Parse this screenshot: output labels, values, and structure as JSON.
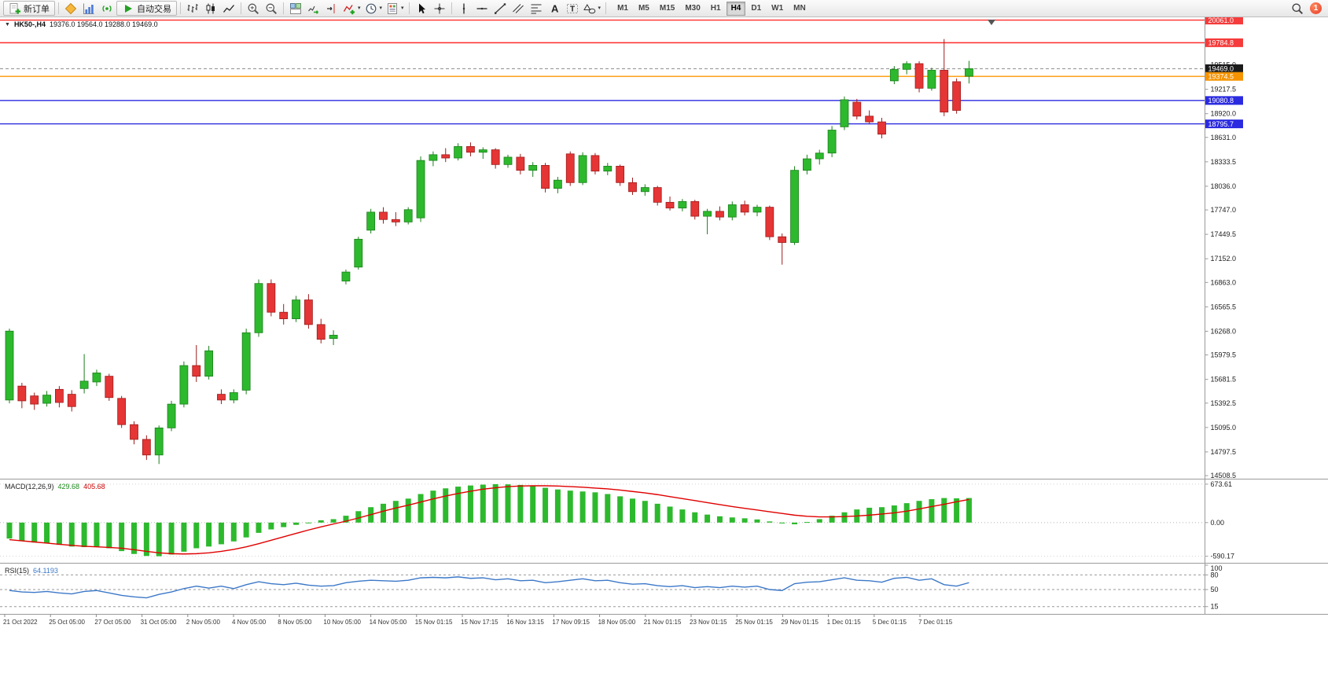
{
  "toolbar": {
    "new_order_label": "新订单",
    "autotrading_label": "自动交易",
    "dropdown_caret": "▾",
    "timeframes": [
      "M1",
      "M5",
      "M15",
      "M30",
      "H1",
      "H4",
      "D1",
      "W1",
      "MN"
    ],
    "active_timeframe": "H4",
    "notification_count": "1"
  },
  "chart_header": {
    "collapse_caret": "▼",
    "symbol": "HK50-,H4",
    "ohlc": "19376.0 19564.0 19288.0 19469.0"
  },
  "indicators": {
    "macd_label": "MACD(12,26,9)",
    "macd_value_main": "429.68",
    "macd_value_signal": "405.68",
    "rsi_label": "RSI(15)",
    "rsi_value": "64.1193"
  },
  "price_axis": {
    "ticks": [
      {
        "label": "19515.0",
        "price": 19515.0
      },
      {
        "label": "19217.5",
        "price": 19217.5
      },
      {
        "label": "18920.0",
        "price": 18920.0
      },
      {
        "label": "18631.0",
        "price": 18631.0
      },
      {
        "label": "18333.5",
        "price": 18333.5
      },
      {
        "label": "18036.0",
        "price": 18036.0
      },
      {
        "label": "17747.0",
        "price": 17747.0
      },
      {
        "label": "17449.5",
        "price": 17449.5
      },
      {
        "label": "17152.0",
        "price": 17152.0
      },
      {
        "label": "16863.0",
        "price": 16863.0
      },
      {
        "label": "16565.5",
        "price": 16565.5
      },
      {
        "label": "16268.0",
        "price": 16268.0
      },
      {
        "label": "15979.5",
        "price": 15979.5
      },
      {
        "label": "15681.5",
        "price": 15681.5
      },
      {
        "label": "15392.5",
        "price": 15392.5
      },
      {
        "label": "15095.0",
        "price": 15095.0
      },
      {
        "label": "14797.5",
        "price": 14797.5
      },
      {
        "label": "14508.5",
        "price": 14508.5
      }
    ]
  },
  "time_axis": {
    "labels": [
      "21 Oct 2022",
      "25 Oct 05:00",
      "27 Oct 05:00",
      "31 Oct 05:00",
      "2 Nov 05:00",
      "4 Nov 05:00",
      "8 Nov 05:00",
      "10 Nov 05:00",
      "14 Nov 05:00",
      "15 Nov 01:15",
      "15 Nov 17:15",
      "16 Nov 13:15",
      "17 Nov 09:15",
      "18 Nov 05:00",
      "21 Nov 01:15",
      "23 Nov 01:15",
      "25 Nov 01:15",
      "29 Nov 01:15",
      "1 Dec 01:15",
      "5 Dec 01:15",
      "7 Dec 01:15"
    ]
  },
  "chart_data": [
    {
      "type": "candlestick",
      "title": "HK50-,H4",
      "symbol": "HK50-",
      "timeframe": "H4",
      "current_bar": {
        "open": 19376.0,
        "high": 19564.0,
        "low": 19288.0,
        "close": 19469.0
      },
      "y_range": [
        14490,
        20095
      ],
      "up_color": "#2DB92D",
      "down_color": "#E53535",
      "horizontal_lines": [
        {
          "price": 20061.0,
          "label": "20061.0",
          "color": "#FF2A2A",
          "badge": "#F53B3B",
          "style": "solid"
        },
        {
          "price": 19784.8,
          "label": "19784.8",
          "color": "#FF2A2A",
          "badge": "#F53B3B",
          "style": "solid"
        },
        {
          "price": 19469.0,
          "label": "19469.0",
          "color": "#8A8A8A",
          "badge": "#1B1B1B",
          "style": "dashed"
        },
        {
          "price": 19374.5,
          "label": "19374.5",
          "color": "#FF9800",
          "badge": "#F59300",
          "style": "solid"
        },
        {
          "price": 19080.8,
          "label": "19080.8",
          "color": "#2A2AE0",
          "badge": "#2A2AE0",
          "style": "solid"
        },
        {
          "price": 18795.7,
          "label": "18795.7",
          "color": "#2A2AE0",
          "badge": "#2A2AE0",
          "style": "solid"
        }
      ],
      "candles": [
        [
          15430,
          16300,
          15390,
          16270
        ],
        [
          15600,
          15640,
          15330,
          15420
        ],
        [
          15480,
          15520,
          15310,
          15380
        ],
        [
          15390,
          15540,
          15350,
          15490
        ],
        [
          15560,
          15600,
          15340,
          15400
        ],
        [
          15500,
          15550,
          15290,
          15350
        ],
        [
          15570,
          15990,
          15510,
          15660
        ],
        [
          15650,
          15800,
          15600,
          15760
        ],
        [
          15720,
          15750,
          15420,
          15460
        ],
        [
          15450,
          15480,
          15090,
          15130
        ],
        [
          15130,
          15170,
          14890,
          14950
        ],
        [
          14950,
          15000,
          14700,
          14760
        ],
        [
          14760,
          15120,
          14650,
          15090
        ],
        [
          15090,
          15420,
          15050,
          15380
        ],
        [
          15380,
          15900,
          15340,
          15850
        ],
        [
          15850,
          16100,
          15650,
          15720
        ],
        [
          15720,
          16090,
          15680,
          16030
        ],
        [
          15500,
          15560,
          15380,
          15430
        ],
        [
          15430,
          15560,
          15390,
          15520
        ],
        [
          15550,
          16300,
          15500,
          16250
        ],
        [
          16250,
          16900,
          16200,
          16850
        ],
        [
          16850,
          16900,
          16450,
          16500
        ],
        [
          16500,
          16600,
          16350,
          16420
        ],
        [
          16420,
          16700,
          16380,
          16650
        ],
        [
          16650,
          16720,
          16300,
          16350
        ],
        [
          16350,
          16420,
          16120,
          16170
        ],
        [
          16180,
          16280,
          16100,
          16220
        ],
        [
          16880,
          17020,
          16840,
          16990
        ],
        [
          17050,
          17420,
          17020,
          17390
        ],
        [
          17500,
          17760,
          17460,
          17720
        ],
        [
          17720,
          17780,
          17580,
          17630
        ],
        [
          17630,
          17720,
          17550,
          17600
        ],
        [
          17600,
          17780,
          17570,
          17750
        ],
        [
          17650,
          18400,
          17600,
          18350
        ],
        [
          18350,
          18460,
          18280,
          18420
        ],
        [
          18420,
          18500,
          18330,
          18380
        ],
        [
          18380,
          18560,
          18350,
          18520
        ],
        [
          18520,
          18570,
          18400,
          18450
        ],
        [
          18450,
          18510,
          18370,
          18480
        ],
        [
          18480,
          18500,
          18250,
          18300
        ],
        [
          18300,
          18420,
          18260,
          18390
        ],
        [
          18390,
          18430,
          18180,
          18230
        ],
        [
          18230,
          18330,
          18150,
          18290
        ],
        [
          18290,
          18320,
          17960,
          18010
        ],
        [
          18010,
          18150,
          17950,
          18110
        ],
        [
          18430,
          18460,
          18040,
          18080
        ],
        [
          18080,
          18450,
          18050,
          18410
        ],
        [
          18410,
          18440,
          18180,
          18220
        ],
        [
          18220,
          18320,
          18170,
          18280
        ],
        [
          18280,
          18300,
          18040,
          18080
        ],
        [
          18080,
          18140,
          17930,
          17970
        ],
        [
          17970,
          18060,
          17920,
          18020
        ],
        [
          18020,
          18040,
          17800,
          17840
        ],
        [
          17840,
          17910,
          17740,
          17770
        ],
        [
          17770,
          17880,
          17730,
          17850
        ],
        [
          17850,
          17870,
          17630,
          17670
        ],
        [
          17670,
          17760,
          17450,
          17730
        ],
        [
          17730,
          17790,
          17620,
          17660
        ],
        [
          17660,
          17850,
          17620,
          17810
        ],
        [
          17810,
          17860,
          17680,
          17720
        ],
        [
          17720,
          17810,
          17670,
          17780
        ],
        [
          17780,
          17800,
          17380,
          17420
        ],
        [
          17420,
          17460,
          17080,
          17350
        ],
        [
          17350,
          18280,
          17320,
          18230
        ],
        [
          18230,
          18420,
          18180,
          18370
        ],
        [
          18370,
          18480,
          18300,
          18440
        ],
        [
          18440,
          18770,
          18390,
          18720
        ],
        [
          18760,
          19130,
          18720,
          19090
        ],
        [
          19060,
          19100,
          18850,
          18890
        ],
        [
          18890,
          18960,
          18790,
          18820
        ],
        [
          18820,
          18870,
          18620,
          18670
        ],
        [
          19320,
          19500,
          19280,
          19460
        ],
        [
          19460,
          19560,
          19400,
          19530
        ],
        [
          19530,
          19560,
          19180,
          19230
        ],
        [
          19230,
          19480,
          19200,
          19450
        ],
        [
          19450,
          19830,
          18890,
          18940
        ],
        [
          19310,
          19350,
          18920,
          18960
        ],
        [
          19376,
          19564,
          19288,
          19469
        ]
      ]
    },
    {
      "type": "bar",
      "name": "MACD(12,26,9)",
      "display_values": [
        429.68,
        405.68
      ],
      "y_range": [
        -650,
        700
      ],
      "axis_ticks": [
        {
          "label": "673.61",
          "value": 673.61
        },
        {
          "label": "0.00",
          "value": 0
        },
        {
          "label": "-590.17",
          "value": -590.17
        }
      ],
      "histogram_color": "#2DB92D",
      "signal_color": "#E00000",
      "histogram": [
        -280,
        -320,
        -350,
        -360,
        -390,
        -420,
        -430,
        -420,
        -450,
        -500,
        -550,
        -585,
        -590,
        -560,
        -510,
        -450,
        -420,
        -380,
        -330,
        -260,
        -180,
        -120,
        -80,
        -40,
        0,
        40,
        60,
        120,
        200,
        270,
        330,
        380,
        420,
        500,
        560,
        600,
        630,
        650,
        665,
        673,
        670,
        660,
        640,
        610,
        580,
        560,
        545,
        530,
        500,
        460,
        420,
        380,
        330,
        280,
        230,
        180,
        140,
        110,
        90,
        75,
        55,
        20,
        -15,
        -30,
        10,
        60,
        120,
        180,
        230,
        260,
        270,
        300,
        340,
        380,
        410,
        430,
        425,
        430
      ],
      "signal": [
        -300,
        -320,
        -340,
        -360,
        -380,
        -400,
        -415,
        -425,
        -435,
        -450,
        -475,
        -505,
        -530,
        -545,
        -550,
        -545,
        -530,
        -505,
        -470,
        -425,
        -370,
        -310,
        -250,
        -190,
        -130,
        -75,
        -25,
        25,
        80,
        140,
        200,
        255,
        305,
        360,
        415,
        465,
        510,
        550,
        585,
        610,
        630,
        640,
        645,
        645,
        640,
        630,
        620,
        605,
        590,
        570,
        545,
        520,
        490,
        455,
        420,
        385,
        350,
        315,
        280,
        250,
        220,
        190,
        160,
        130,
        110,
        100,
        100,
        105,
        115,
        130,
        150,
        170,
        200,
        240,
        280,
        320,
        365,
        405
      ]
    },
    {
      "type": "line",
      "name": "RSI(15)",
      "display_value": 64.1193,
      "y_range": [
        0,
        100
      ],
      "levels": [
        80,
        50,
        15
      ],
      "axis_ticks": [
        {
          "label": "100",
          "value": 100
        },
        {
          "label": "80",
          "value": 80
        },
        {
          "label": "50",
          "value": 50
        },
        {
          "label": "15",
          "value": 15
        }
      ],
      "line_color": "#3C78C8",
      "values": [
        48,
        45,
        44,
        46,
        43,
        41,
        46,
        48,
        43,
        38,
        35,
        33,
        40,
        45,
        52,
        57,
        53,
        57,
        52,
        60,
        66,
        62,
        60,
        63,
        59,
        57,
        58,
        64,
        67,
        69,
        68,
        67,
        69,
        74,
        75,
        74,
        76,
        73,
        74,
        70,
        72,
        68,
        69,
        64,
        66,
        69,
        72,
        68,
        69,
        64,
        61,
        62,
        58,
        56,
        58,
        54,
        56,
        54,
        57,
        55,
        57,
        50,
        48,
        62,
        65,
        66,
        70,
        74,
        69,
        68,
        65,
        73,
        75,
        69,
        72,
        60,
        57,
        64.1
      ]
    }
  ]
}
